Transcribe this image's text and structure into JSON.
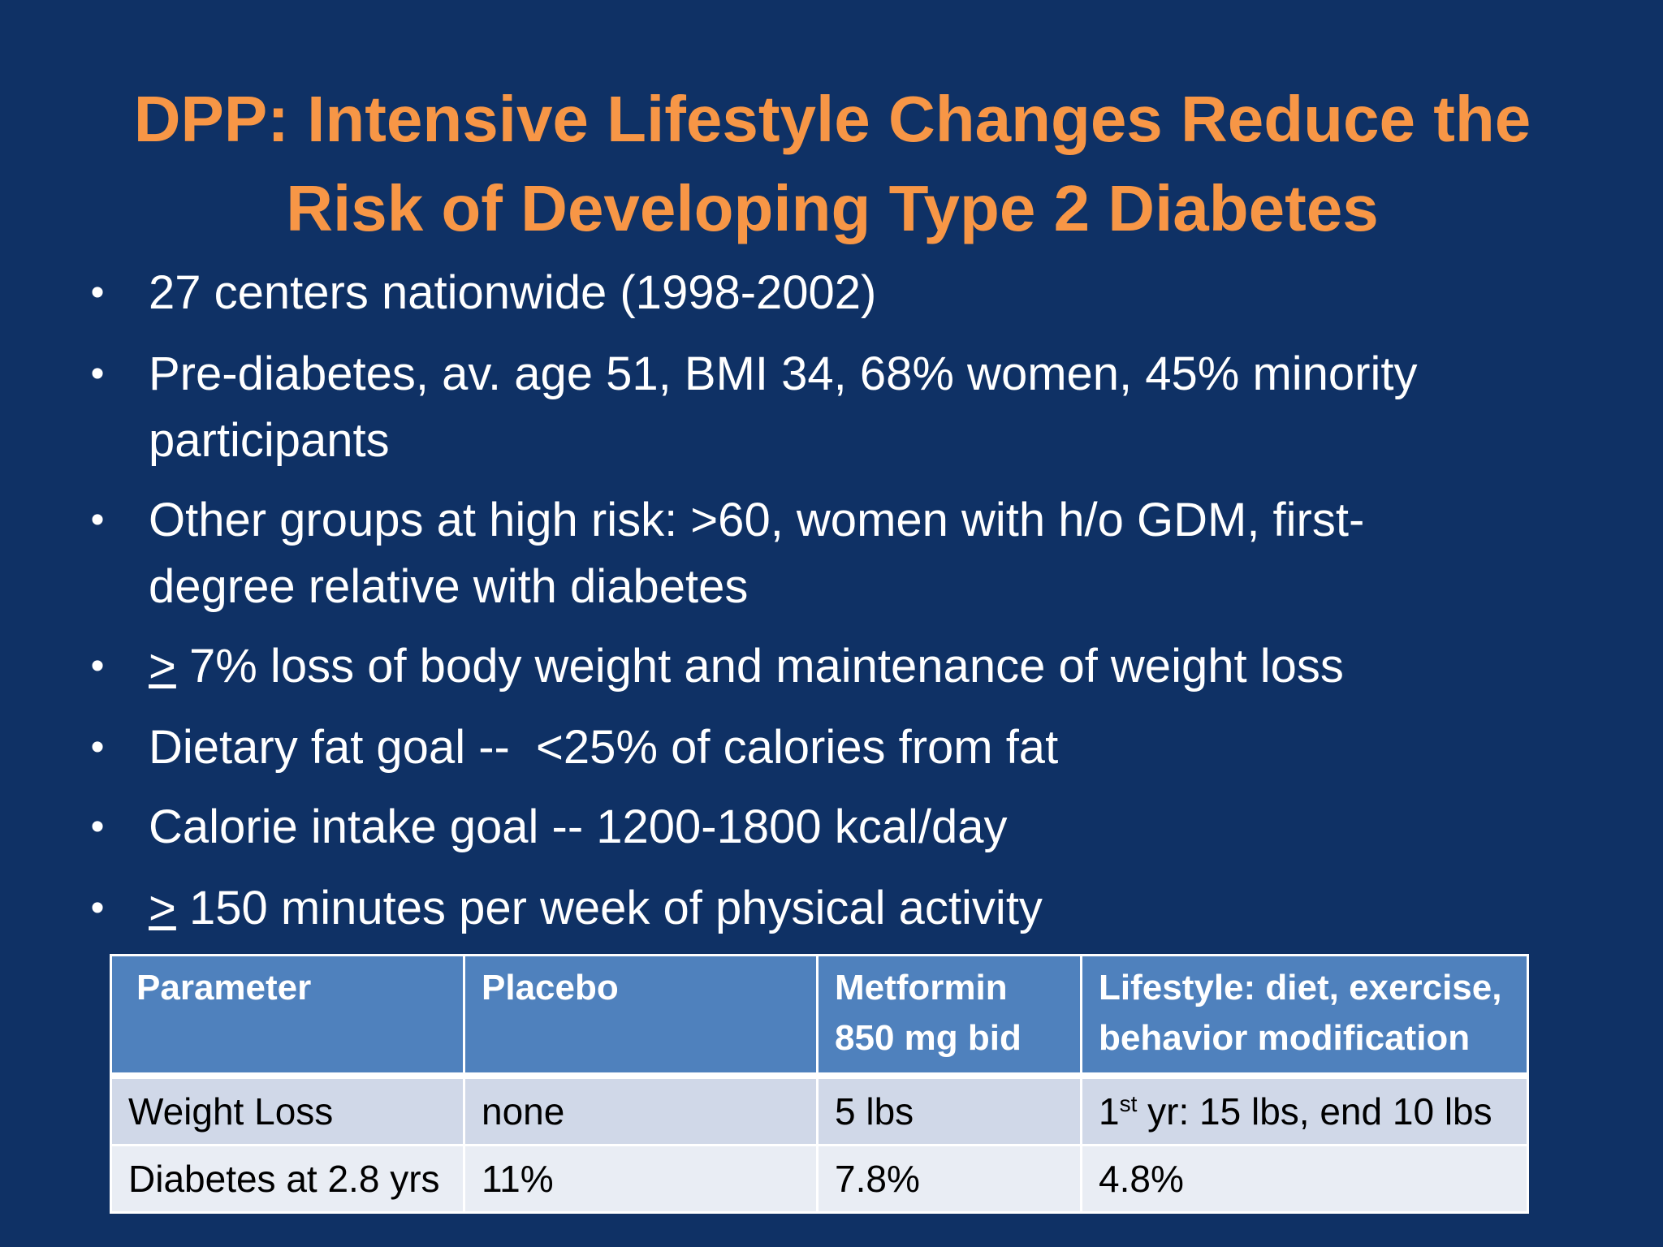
{
  "slide": {
    "title_line1": "DPP: Intensive Lifestyle Changes Reduce the",
    "title_line2": "Risk of Developing Type 2 Diabetes",
    "bullet_glyph": "•",
    "bullets": [
      {
        "text": "27 centers nationwide (1998-2002)"
      },
      {
        "line1": "Pre-diabetes, av. age 51, BMI 34, 68% women, 45% minority",
        "line2": "participants"
      },
      {
        "line1": "Other groups at high risk: >60, women with h/o GDM, first-",
        "line2": "degree relative with diabetes"
      },
      {
        "underlined": ">",
        "text": " 7% loss of body weight and maintenance of weight loss"
      },
      {
        "text": "Dietary fat goal --  <25% of calories from fat"
      },
      {
        "text": "Calorie intake goal -- 1200-1800 kcal/day"
      },
      {
        "underlined": ">",
        "text": " 150 minutes per week of physical activity"
      }
    ],
    "table": {
      "headers": [
        {
          "line1": "Parameter",
          "line2": ""
        },
        {
          "line1": "Placebo",
          "line2": ""
        },
        {
          "line1": "Metformin",
          "line2": "850 mg bid"
        },
        {
          "line1": "Lifestyle: diet, exercise,",
          "line2": "behavior modification"
        }
      ],
      "rows": [
        {
          "parameter": "Weight Loss",
          "placebo": "none",
          "metformin": "5 lbs",
          "lifestyle_pre": "1",
          "lifestyle_sup": "st",
          "lifestyle_post": " yr: 15 lbs, end 10 lbs"
        },
        {
          "parameter": "Diabetes at 2.8 yrs",
          "placebo": "11%",
          "metformin": "7.8%",
          "lifestyle": "4.8%"
        }
      ]
    }
  },
  "colors": {
    "background": "#0f3165",
    "title": "#f79646",
    "body_text": "#ffffff",
    "table_header": "#4f81bd",
    "table_row_odd": "#d0d8e8",
    "table_row_even": "#e9edf4"
  }
}
